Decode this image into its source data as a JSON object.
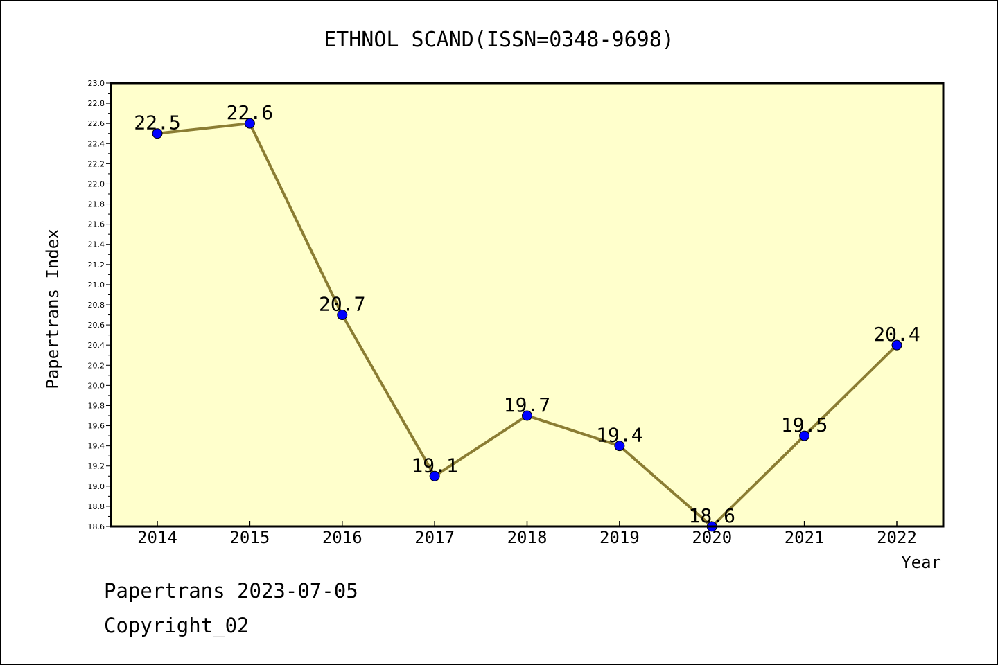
{
  "chart_data": {
    "type": "line",
    "title": "ETHNOL SCAND(ISSN=0348-9698)",
    "xlabel": "Year",
    "ylabel": "Papertrans Index",
    "x": [
      "2014",
      "2015",
      "2016",
      "2017",
      "2018",
      "2019",
      "2020",
      "2021",
      "2022"
    ],
    "series": [
      {
        "values": [
          22.5,
          22.6,
          20.7,
          19.1,
          19.7,
          19.4,
          18.6,
          19.5,
          20.4
        ],
        "labels": [
          "22.5",
          "22.6",
          "20.7",
          "19.1",
          "19.7",
          "19.4",
          "18.6",
          "19.5",
          "20.4"
        ]
      }
    ],
    "ylim": [
      18.6,
      23.0
    ],
    "yticks": [
      "18.6",
      "18.8",
      "19.0",
      "19.2",
      "19.4",
      "19.6",
      "19.8",
      "20.0",
      "20.2",
      "20.4",
      "20.6",
      "20.8",
      "21.0",
      "21.2",
      "21.4",
      "21.6",
      "21.8",
      "22.0",
      "22.2",
      "22.4",
      "22.6",
      "22.8",
      "23.0"
    ],
    "grid": false,
    "colors": {
      "plot_background": "#ffffcc",
      "line": "#8b7d33",
      "marker": "#0000ff"
    }
  },
  "footer": {
    "line1": "Papertrans 2023-07-05",
    "line2": "Copyright_02"
  }
}
